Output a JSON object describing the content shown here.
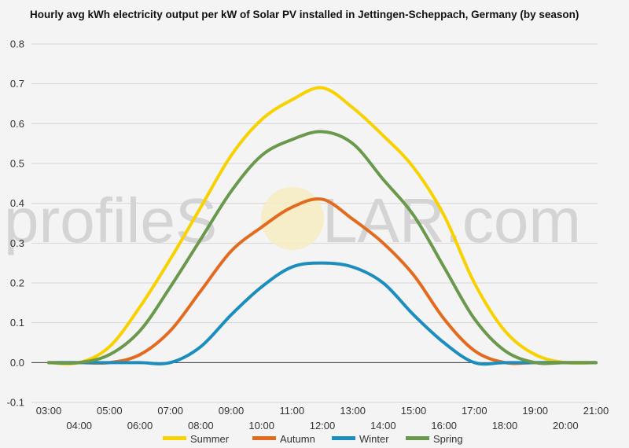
{
  "chart_data": {
    "type": "line",
    "title": "Hourly avg kWh electricity output per kW of Solar PV installed in Jettingen-Scheppach, Germany (by season)",
    "watermark": {
      "left": "profileS",
      "right": "LAR.com"
    },
    "xlabel": "",
    "ylabel": "",
    "x": [
      "03:00",
      "04:00",
      "05:00",
      "06:00",
      "07:00",
      "08:00",
      "09:00",
      "10:00",
      "11:00",
      "12:00",
      "13:00",
      "14:00",
      "15:00",
      "16:00",
      "17:00",
      "18:00",
      "19:00",
      "20:00",
      "21:00"
    ],
    "ylim": [
      -0.1,
      0.8
    ],
    "yticks": [
      "-0.1",
      "0.0",
      "0.1",
      "0.2",
      "0.3",
      "0.4",
      "0.5",
      "0.6",
      "0.7",
      "0.8"
    ],
    "ytick_values": [
      -0.1,
      0,
      0.1,
      0.2,
      0.3,
      0.4,
      0.5,
      0.6,
      0.7,
      0.8
    ],
    "grid": true,
    "legend_position": "bottom",
    "series": [
      {
        "name": "Summer",
        "color": "#f7d100",
        "values": [
          0,
          0,
          0.04,
          0.14,
          0.26,
          0.39,
          0.52,
          0.61,
          0.66,
          0.69,
          0.64,
          0.57,
          0.49,
          0.37,
          0.2,
          0.08,
          0.02,
          0,
          0
        ]
      },
      {
        "name": "Autumn",
        "color": "#e36b1f",
        "values": [
          0,
          0,
          0,
          0.02,
          0.08,
          0.18,
          0.28,
          0.34,
          0.39,
          0.41,
          0.36,
          0.3,
          0.22,
          0.11,
          0.03,
          0,
          0,
          0,
          0
        ]
      },
      {
        "name": "Winter",
        "color": "#1c8ebd",
        "values": [
          0,
          0,
          0,
          0,
          0,
          0.04,
          0.12,
          0.19,
          0.24,
          0.25,
          0.24,
          0.2,
          0.12,
          0.05,
          0,
          0,
          0,
          0,
          0
        ]
      },
      {
        "name": "Spring",
        "color": "#6a984c",
        "values": [
          0,
          0,
          0.02,
          0.08,
          0.19,
          0.31,
          0.43,
          0.52,
          0.56,
          0.58,
          0.55,
          0.46,
          0.37,
          0.24,
          0.11,
          0.03,
          0,
          0,
          0
        ]
      }
    ]
  }
}
